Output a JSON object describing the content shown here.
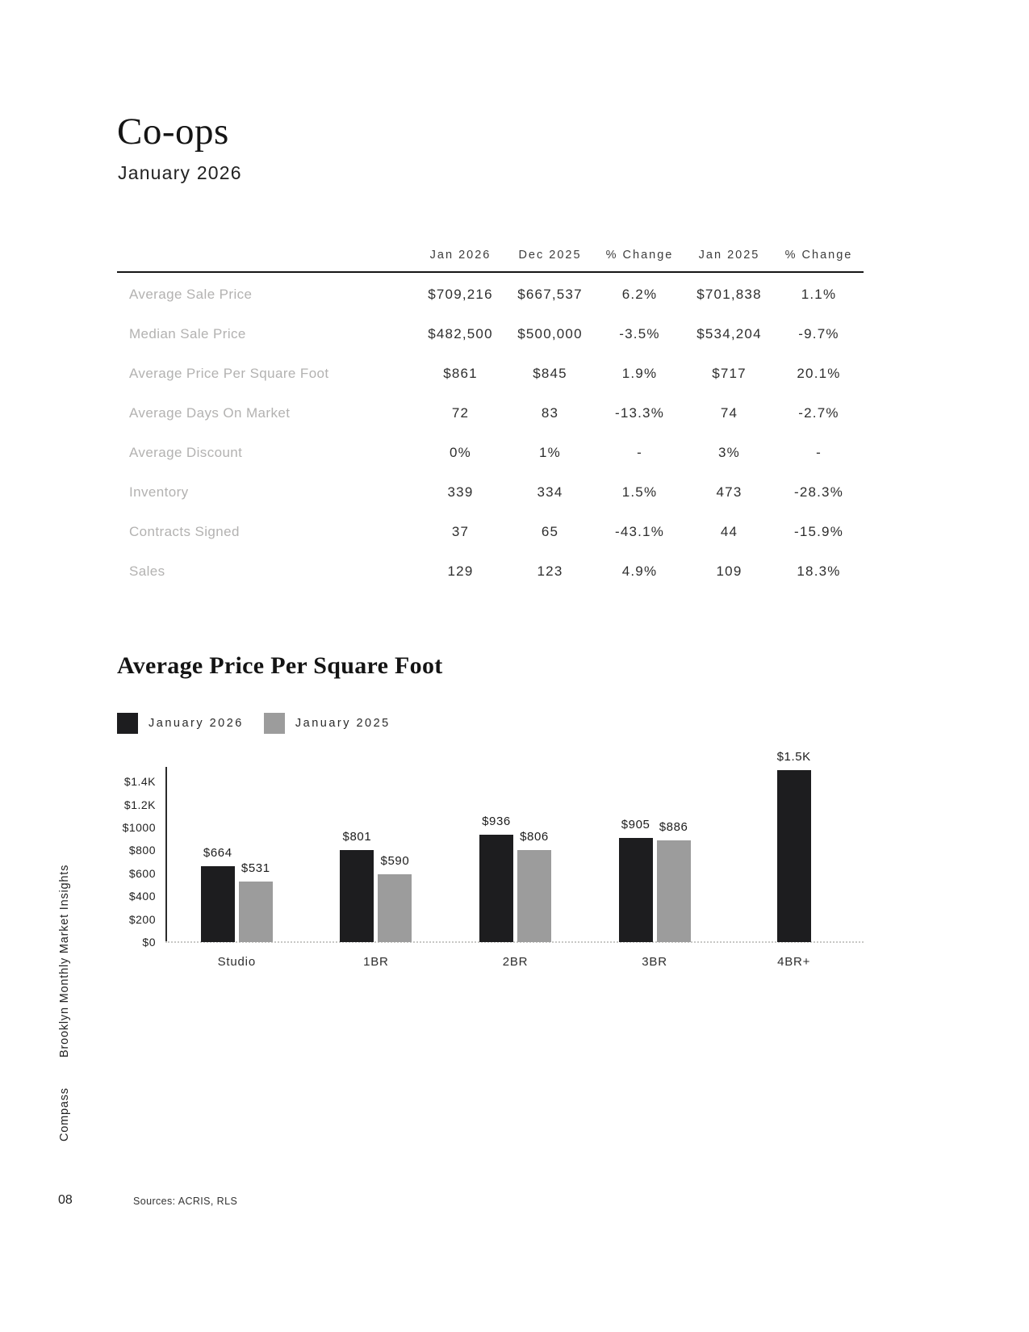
{
  "page": {
    "title": "Co-ops",
    "subtitle": "January 2026",
    "page_number": "08",
    "sources": "Sources: ACRIS, RLS",
    "sidebar_text_top": "Brooklyn Monthly Market Insights",
    "sidebar_text_bottom": "Compass"
  },
  "table": {
    "columns": [
      "Jan 2026",
      "Dec 2025",
      "% Change",
      "Jan 2025",
      "% Change"
    ],
    "rows": [
      {
        "label": "Average Sale Price",
        "values": [
          "$709,216",
          "$667,537",
          "6.2%",
          "$701,838",
          "1.1%"
        ]
      },
      {
        "label": "Median Sale Price",
        "values": [
          "$482,500",
          "$500,000",
          "-3.5%",
          "$534,204",
          "-9.7%"
        ]
      },
      {
        "label": "Average Price Per Square Foot",
        "values": [
          "$861",
          "$845",
          "1.9%",
          "$717",
          "20.1%"
        ]
      },
      {
        "label": "Average Days On Market",
        "values": [
          "72",
          "83",
          "-13.3%",
          "74",
          "-2.7%"
        ]
      },
      {
        "label": "Average Discount",
        "values": [
          "0%",
          "1%",
          "-",
          "3%",
          "-"
        ]
      },
      {
        "label": "Inventory",
        "values": [
          "339",
          "334",
          "1.5%",
          "473",
          "-28.3%"
        ]
      },
      {
        "label": "Contracts Signed",
        "values": [
          "37",
          "65",
          "-43.1%",
          "44",
          "-15.9%"
        ]
      },
      {
        "label": "Sales",
        "values": [
          "129",
          "123",
          "4.9%",
          "109",
          "18.3%"
        ]
      }
    ]
  },
  "chart": {
    "title": "Average Price Per Square Foot",
    "legend": [
      {
        "label": "January 2026",
        "color": "#1d1d1f"
      },
      {
        "label": "January 2025",
        "color": "#9c9c9c"
      }
    ]
  },
  "chart_data": {
    "type": "bar",
    "title": "Average Price Per Square Foot",
    "categories": [
      "Studio",
      "1BR",
      "2BR",
      "3BR",
      "4BR+"
    ],
    "series": [
      {
        "name": "January 2026",
        "color": "#1d1d1f",
        "values": [
          664,
          801,
          936,
          905,
          1500
        ],
        "labels": [
          "$664",
          "$801",
          "$936",
          "$905",
          "$1.5K"
        ]
      },
      {
        "name": "January 2025",
        "color": "#9c9c9c",
        "values": [
          531,
          590,
          806,
          886,
          null
        ],
        "labels": [
          "$531",
          "$590",
          "$806",
          "$886",
          ""
        ]
      }
    ],
    "y_ticks": [
      "$1.4K",
      "$1.2K",
      "$1000",
      "$800",
      "$600",
      "$400",
      "$200",
      "$0"
    ],
    "y_tick_values": [
      1400,
      1200,
      1000,
      800,
      600,
      400,
      200,
      0
    ],
    "ylim": [
      0,
      1500
    ],
    "grid": false,
    "legend_position": "top-left"
  }
}
